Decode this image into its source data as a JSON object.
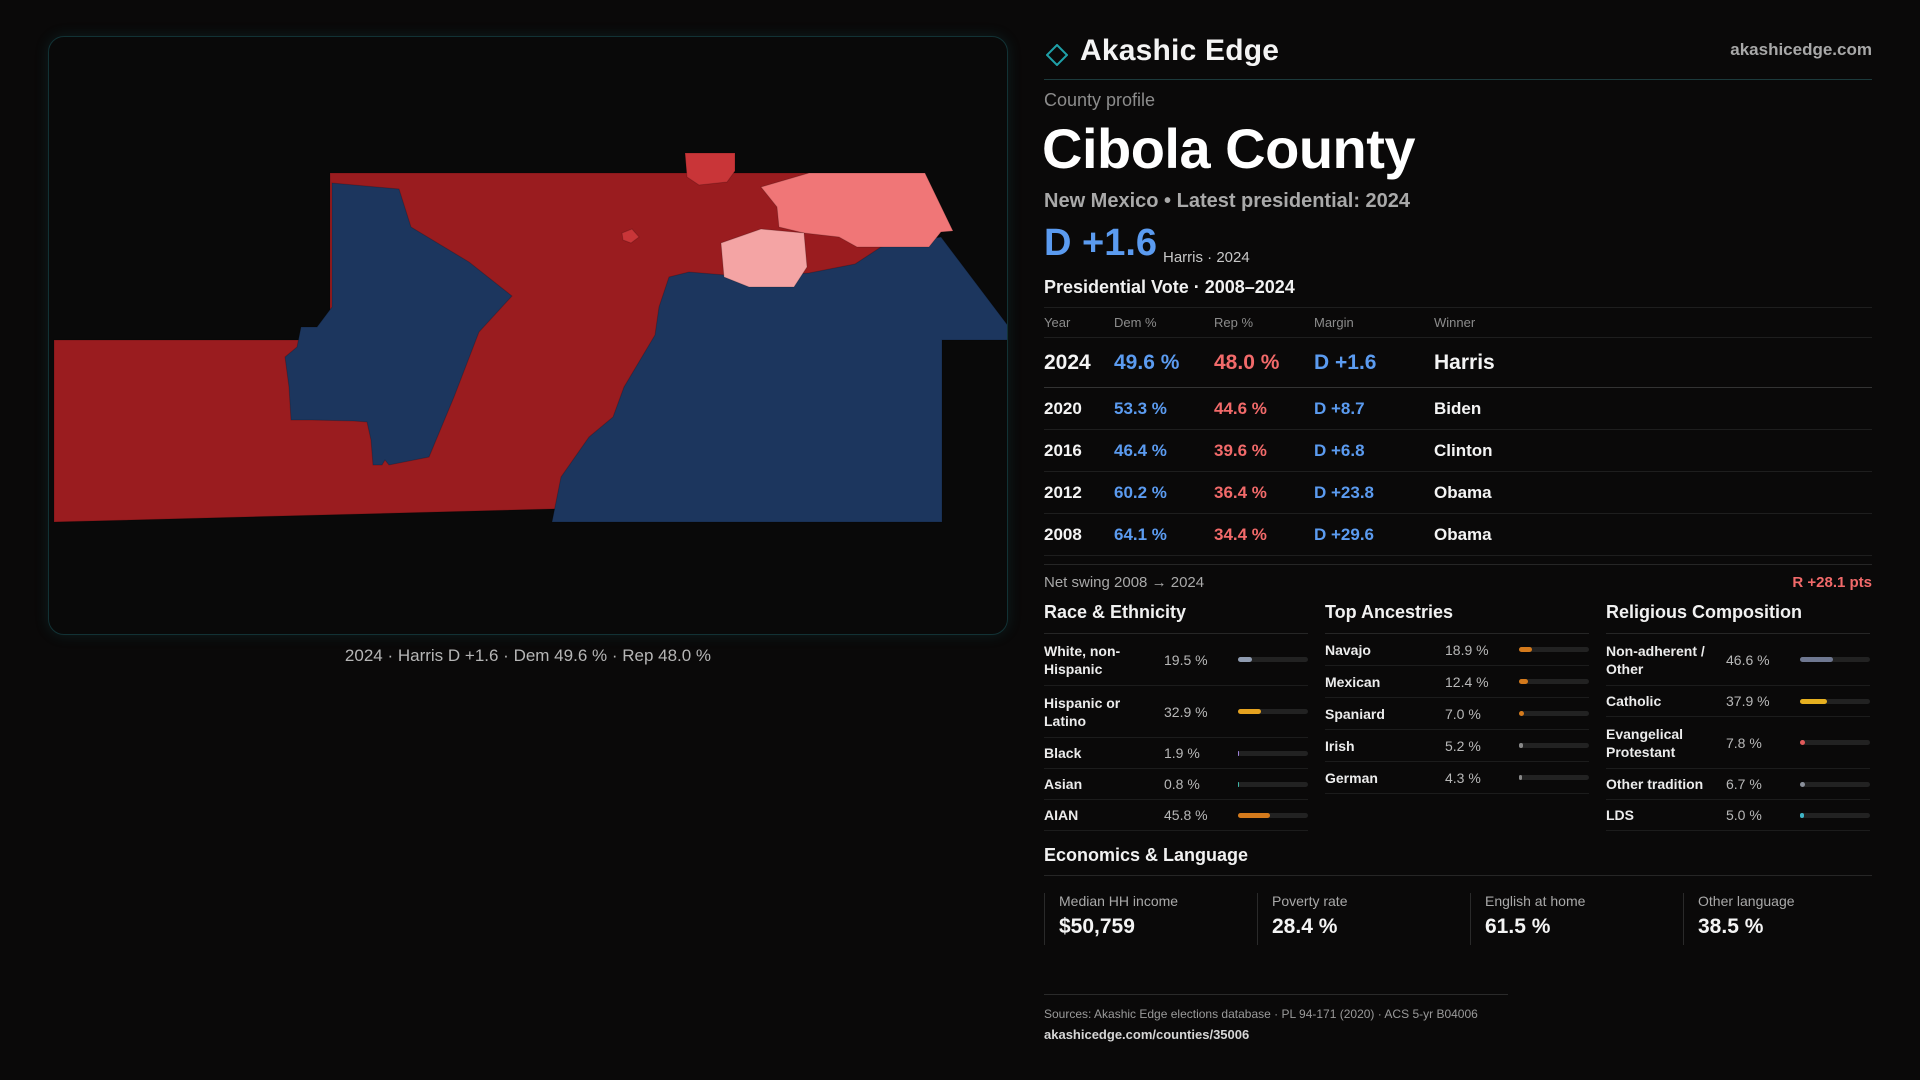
{
  "header": {
    "brand": "Akashic Edge",
    "site": "akashicedge.com"
  },
  "profile": {
    "eyebrow": "County profile",
    "title": "Cibola County",
    "subtitle": "New Mexico • Latest presidential: 2024",
    "margin": "D +1.6",
    "margin_note": "Harris · 2024"
  },
  "map": {
    "caption": "2024 · Harris D +1.6 · Dem 49.6 % · Rep 48.0 %",
    "colors": {
      "dem": "#1c365e",
      "rep_strong": "#9a1c1f",
      "rep_bright": "#c93538",
      "rep_light": "#f07677",
      "rep_pale": "#f4a4a4"
    }
  },
  "votes": {
    "title": "Presidential Vote · 2008–2024",
    "headers": [
      "Year",
      "Dem %",
      "Rep %",
      "Margin",
      "Winner"
    ],
    "rows": [
      {
        "year": "2024",
        "dem": "49.6 %",
        "rep": "48.0 %",
        "margin": "D +1.6",
        "winner": "Harris"
      },
      {
        "year": "2020",
        "dem": "53.3 %",
        "rep": "44.6 %",
        "margin": "D +8.7",
        "winner": "Biden"
      },
      {
        "year": "2016",
        "dem": "46.4 %",
        "rep": "39.6 %",
        "margin": "D +6.8",
        "winner": "Clinton"
      },
      {
        "year": "2012",
        "dem": "60.2 %",
        "rep": "36.4 %",
        "margin": "D +23.8",
        "winner": "Obama"
      },
      {
        "year": "2008",
        "dem": "64.1 %",
        "rep": "34.4 %",
        "margin": "D +29.6",
        "winner": "Obama"
      }
    ]
  },
  "swing": {
    "label": "Net swing 2008 → 2024",
    "value": "R +28.1 pts"
  },
  "race": {
    "title": "Race & Ethnicity",
    "rows": [
      {
        "label": "White, non-Hispanic",
        "pct": "19.5 %",
        "share": 19.5,
        "color": "#8f9bb0"
      },
      {
        "label": "Hispanic or Latino",
        "pct": "32.9 %",
        "share": 32.9,
        "color": "#e6a320"
      },
      {
        "label": "Black",
        "pct": "1.9 %",
        "share": 1.9,
        "color": "#9b7fd6"
      },
      {
        "label": "Asian",
        "pct": "0.8 %",
        "share": 0.8,
        "color": "#3fb4a6"
      },
      {
        "label": "AIAN",
        "pct": "45.8 %",
        "share": 45.8,
        "color": "#d47a1c"
      }
    ]
  },
  "ancestry": {
    "title": "Top Ancestries",
    "rows": [
      {
        "label": "Navajo",
        "pct": "18.9 %",
        "share": 18.9,
        "color": "#d47a1c"
      },
      {
        "label": "Mexican",
        "pct": "12.4 %",
        "share": 12.4,
        "color": "#d47a1c"
      },
      {
        "label": "Spaniard",
        "pct": "7.0 %",
        "share": 7.0,
        "color": "#d47a1c"
      },
      {
        "label": "Irish",
        "pct": "5.2 %",
        "share": 5.2,
        "color": "#888888"
      },
      {
        "label": "German",
        "pct": "4.3 %",
        "share": 4.3,
        "color": "#888888"
      }
    ]
  },
  "religion": {
    "title": "Religious Composition",
    "rows": [
      {
        "label": "Non-adherent / Other",
        "pct": "46.6 %",
        "share": 46.6,
        "color": "#6f7891"
      },
      {
        "label": "Catholic",
        "pct": "37.9 %",
        "share": 37.9,
        "color": "#e6b020"
      },
      {
        "label": "Evangelical Protestant",
        "pct": "7.8 %",
        "share": 7.8,
        "color": "#e05a5a"
      },
      {
        "label": "Other tradition",
        "pct": "6.7 %",
        "share": 6.7,
        "color": "#8a8f9a"
      },
      {
        "label": "LDS",
        "pct": "5.0 %",
        "share": 5.0,
        "color": "#3fb4c6"
      }
    ]
  },
  "economics": {
    "title": "Economics & Language",
    "stats": [
      {
        "label": "Median HH income",
        "value": "$50,759"
      },
      {
        "label": "Poverty rate",
        "value": "28.4 %"
      },
      {
        "label": "English at home",
        "value": "61.5 %"
      },
      {
        "label": "Other language",
        "value": "38.5 %"
      }
    ]
  },
  "footer": {
    "sources": "Sources: Akashic Edge elections database · PL 94-171 (2020) · ACS 5-yr B04006",
    "url": "akashicedge.com/counties/35006"
  }
}
